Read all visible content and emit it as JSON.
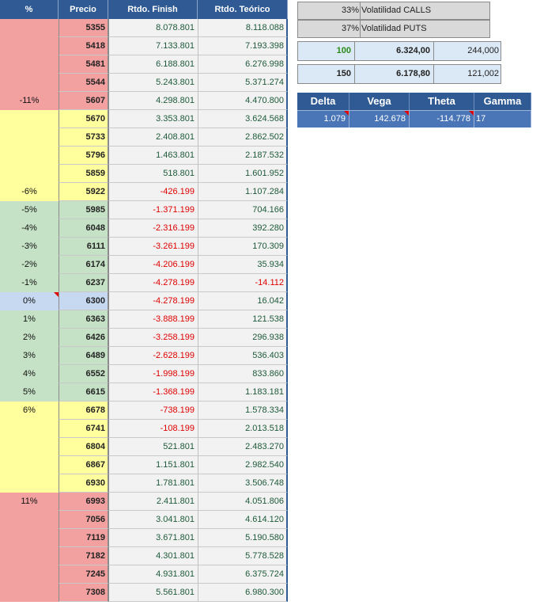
{
  "headers": {
    "pct": "%",
    "precio": "Precio",
    "finish": "Rtdo. Finish",
    "teor": "Rtdo. Teórico"
  },
  "rows": [
    {
      "pct": "",
      "precio": "5355",
      "finish": "8.078.801",
      "teor": "8.118.088",
      "pc": "red"
    },
    {
      "pct": "",
      "precio": "5418",
      "finish": "7.133.801",
      "teor": "7.193.398",
      "pc": "red"
    },
    {
      "pct": "",
      "precio": "5481",
      "finish": "6.188.801",
      "teor": "6.276.998",
      "pc": "red"
    },
    {
      "pct": "",
      "precio": "5544",
      "finish": "5.243.801",
      "teor": "5.371.274",
      "pc": "red"
    },
    {
      "pct": "-11%",
      "precio": "5607",
      "finish": "4.298.801",
      "teor": "4.470.800",
      "pc": "red"
    },
    {
      "pct": "",
      "precio": "5670",
      "finish": "3.353.801",
      "teor": "3.624.568",
      "pc": "yel"
    },
    {
      "pct": "",
      "precio": "5733",
      "finish": "2.408.801",
      "teor": "2.862.502",
      "pc": "yel"
    },
    {
      "pct": "",
      "precio": "5796",
      "finish": "1.463.801",
      "teor": "2.187.532",
      "pc": "yel"
    },
    {
      "pct": "",
      "precio": "5859",
      "finish": "518.801",
      "teor": "1.601.952",
      "pc": "yel"
    },
    {
      "pct": "-6%",
      "precio": "5922",
      "finish": "-426.199",
      "teor": "1.107.284",
      "pc": "yel"
    },
    {
      "pct": "-5%",
      "precio": "5985",
      "finish": "-1.371.199",
      "teor": "704.166",
      "pc": "grn"
    },
    {
      "pct": "-4%",
      "precio": "6048",
      "finish": "-2.316.199",
      "teor": "392.280",
      "pc": "grn"
    },
    {
      "pct": "-3%",
      "precio": "6111",
      "finish": "-3.261.199",
      "teor": "170.309",
      "pc": "grn"
    },
    {
      "pct": "-2%",
      "precio": "6174",
      "finish": "-4.206.199",
      "teor": "35.934",
      "pc": "grn"
    },
    {
      "pct": "-1%",
      "precio": "6237",
      "finish": "-4.278.199",
      "teor": "-14.112",
      "pc": "grn"
    },
    {
      "pct": "0%",
      "precio": "6300",
      "finish": "-4.278.199",
      "teor": "16.042",
      "pc": "blu"
    },
    {
      "pct": "1%",
      "precio": "6363",
      "finish": "-3.888.199",
      "teor": "121.538",
      "pc": "grn"
    },
    {
      "pct": "2%",
      "precio": "6426",
      "finish": "-3.258.199",
      "teor": "296.938",
      "pc": "grn"
    },
    {
      "pct": "3%",
      "precio": "6489",
      "finish": "-2.628.199",
      "teor": "536.403",
      "pc": "grn"
    },
    {
      "pct": "4%",
      "precio": "6552",
      "finish": "-1.998.199",
      "teor": "833.860",
      "pc": "grn"
    },
    {
      "pct": "5%",
      "precio": "6615",
      "finish": "-1.368.199",
      "teor": "1.183.181",
      "pc": "grn"
    },
    {
      "pct": "6%",
      "precio": "6678",
      "finish": "-738.199",
      "teor": "1.578.334",
      "pc": "yel"
    },
    {
      "pct": "",
      "precio": "6741",
      "finish": "-108.199",
      "teor": "2.013.518",
      "pc": "yel"
    },
    {
      "pct": "",
      "precio": "6804",
      "finish": "521.801",
      "teor": "2.483.270",
      "pc": "yel"
    },
    {
      "pct": "",
      "precio": "6867",
      "finish": "1.151.801",
      "teor": "2.982.540",
      "pc": "yel"
    },
    {
      "pct": "",
      "precio": "6930",
      "finish": "1.781.801",
      "teor": "3.506.748",
      "pc": "yel"
    },
    {
      "pct": "11%",
      "precio": "6993",
      "finish": "2.411.801",
      "teor": "4.051.806",
      "pc": "red"
    },
    {
      "pct": "",
      "precio": "7056",
      "finish": "3.041.801",
      "teor": "4.614.120",
      "pc": "red"
    },
    {
      "pct": "",
      "precio": "7119",
      "finish": "3.671.801",
      "teor": "5.190.580",
      "pc": "red"
    },
    {
      "pct": "",
      "precio": "7182",
      "finish": "4.301.801",
      "teor": "5.778.528",
      "pc": "red"
    },
    {
      "pct": "",
      "precio": "7245",
      "finish": "4.931.801",
      "teor": "6.375.724",
      "pc": "red"
    },
    {
      "pct": "",
      "precio": "7308",
      "finish": "5.561.801",
      "teor": "6.980.300",
      "pc": "red"
    }
  ],
  "volatility": [
    {
      "value": "33%",
      "label": "Volatilidad CALLS"
    },
    {
      "value": "37%",
      "label": "Volatilidad PUTS"
    }
  ],
  "options": [
    {
      "qty": "100",
      "price": "6.324,00",
      "value": "244,000"
    },
    {
      "qty": "150",
      "price": "6.178,80",
      "value": "121,002"
    }
  ],
  "greeks": {
    "headers": [
      "Delta",
      "Vega",
      "Theta",
      "Gamma"
    ],
    "values": [
      "1.079",
      "142.678",
      "-114.778",
      "17"
    ]
  },
  "colors": {
    "header": "#2f5a93",
    "red_zone": "#f2a0a0",
    "yellow_zone": "#ffff9e",
    "green_zone": "#c6e2c6",
    "center": "#c6d9f1",
    "negative": "#e00000",
    "qty_highlight": "#2a8a1a"
  }
}
